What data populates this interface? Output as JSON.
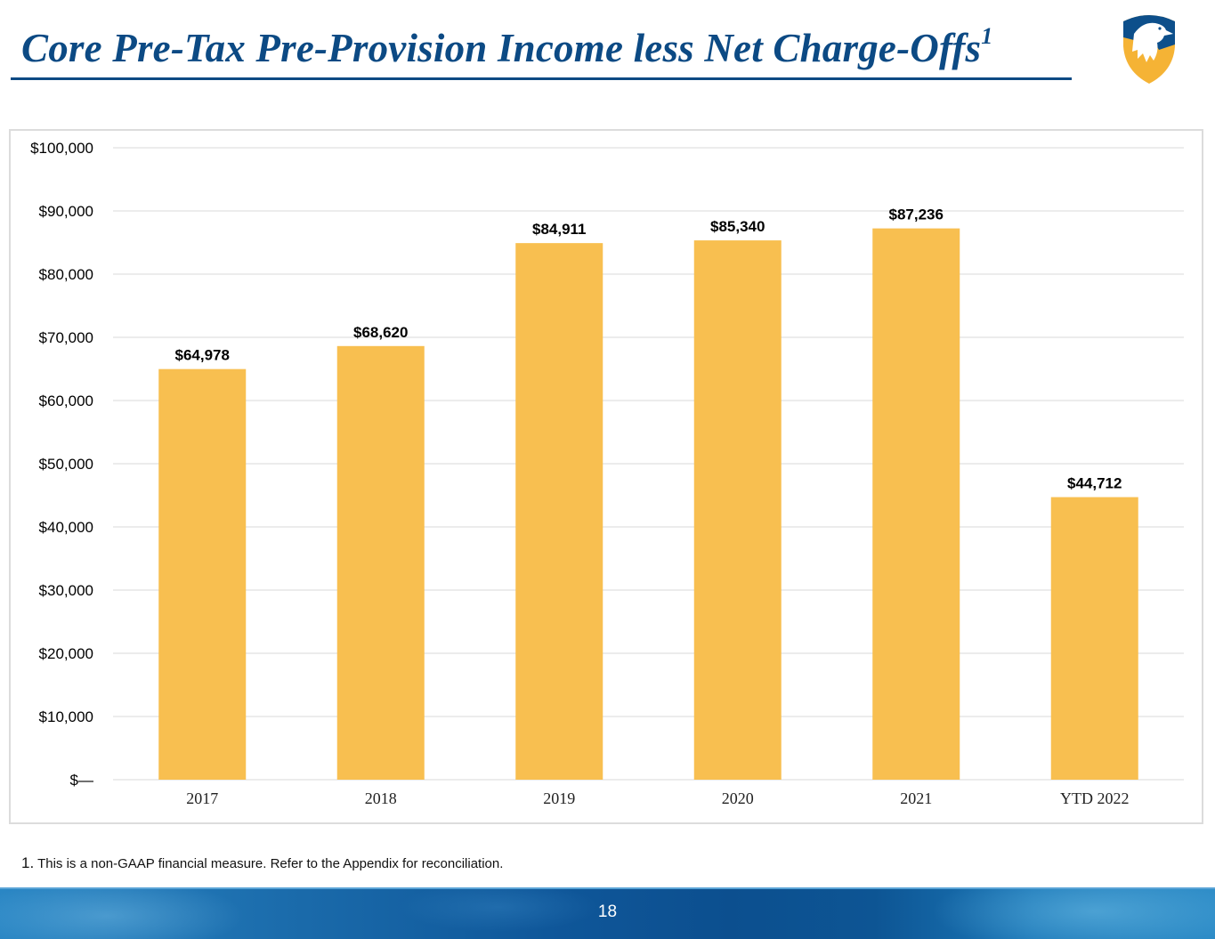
{
  "slide": {
    "title": "Core Pre-Tax Pre-Provision Income less Net Charge-Offs",
    "title_footnote_marker": "1",
    "logo_icon": "eagle-shield-logo",
    "footnote_number": "1.",
    "footnote_text": " This is a non-GAAP financial measure. Refer to the Appendix for reconciliation.",
    "page_number": "18",
    "colors": {
      "title": "#0c4a84",
      "bar": "#f8bf50",
      "gridline": "#e6e6e6",
      "footer": "#0c4f8f"
    }
  },
  "chart_data": {
    "type": "bar",
    "title": "Core Pre-Tax Pre-Provision Income less Net Charge-Offs",
    "xlabel": "",
    "ylabel": "",
    "categories": [
      "2017",
      "2018",
      "2019",
      "2020",
      "2021",
      "YTD 2022"
    ],
    "values": [
      64978,
      68620,
      84911,
      85340,
      87236,
      44712
    ],
    "data_labels": [
      "$64,978",
      "$68,620",
      "$84,911",
      "$85,340",
      "$87,236",
      "$44,712"
    ],
    "ylim": [
      0,
      100000
    ],
    "y_ticks": [
      0,
      10000,
      20000,
      30000,
      40000,
      50000,
      60000,
      70000,
      80000,
      90000,
      100000
    ],
    "y_tick_labels": [
      "$—",
      "$10,000",
      "$20,000",
      "$30,000",
      "$40,000",
      "$50,000",
      "$60,000",
      "$70,000",
      "$80,000",
      "$90,000",
      "$100,000"
    ],
    "grid": true,
    "legend": "none"
  }
}
